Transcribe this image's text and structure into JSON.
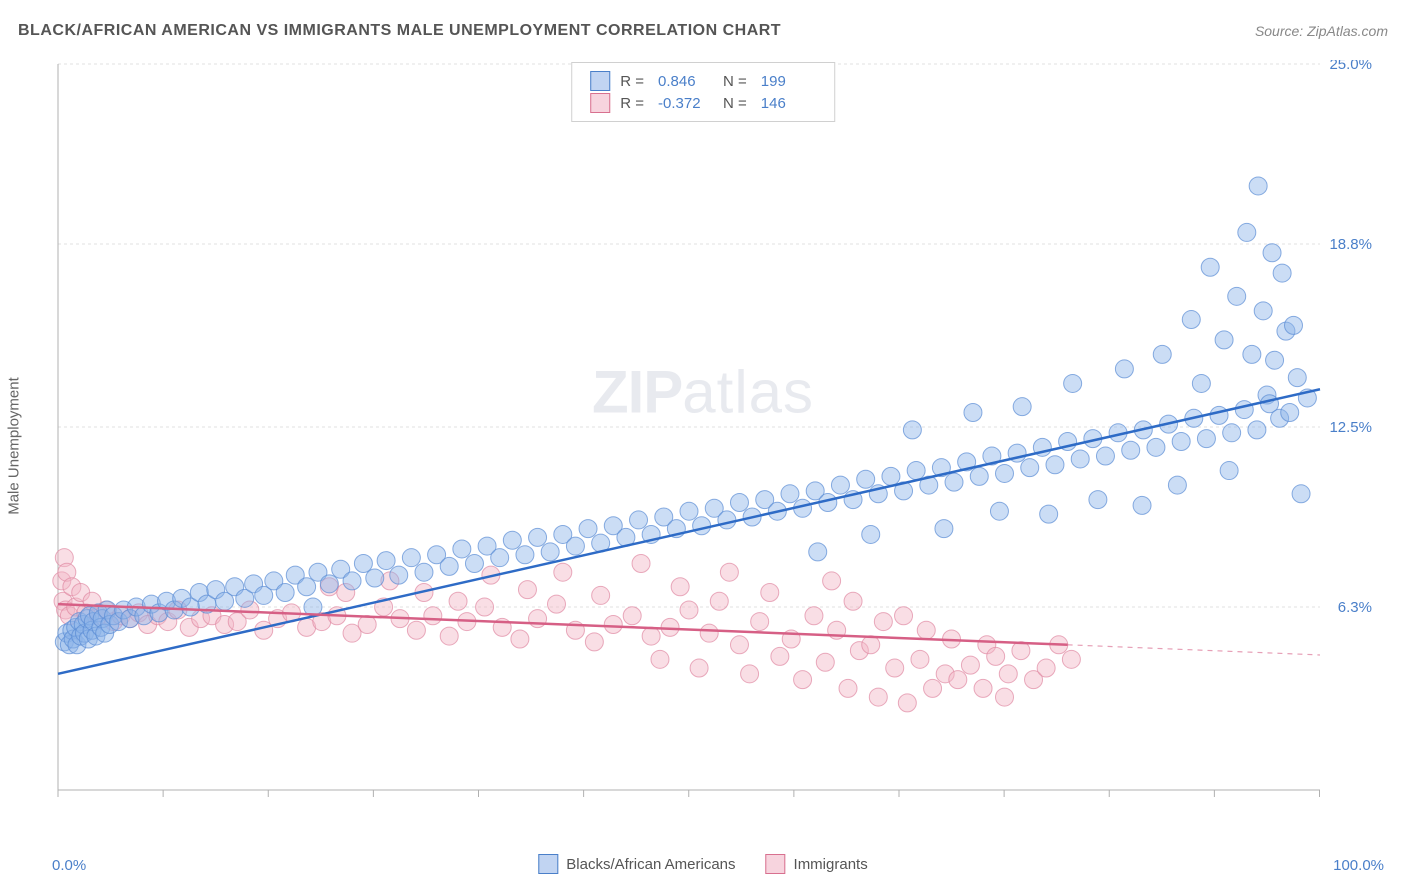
{
  "header": {
    "title": "BLACK/AFRICAN AMERICAN VS IMMIGRANTS MALE UNEMPLOYMENT CORRELATION CHART",
    "source_prefix": "Source: ",
    "source_name": "ZipAtlas.com"
  },
  "watermark": {
    "part1": "ZIP",
    "part2": "atlas"
  },
  "chart": {
    "type": "scatter",
    "ylabel": "Male Unemployment",
    "xlim": [
      0,
      100
    ],
    "ylim": [
      0,
      25
    ],
    "xtick_step": 8.33,
    "ytick_values": [
      6.3,
      12.5,
      18.8,
      25.0
    ],
    "ytick_labels": [
      "6.3%",
      "12.5%",
      "18.8%",
      "25.0%"
    ],
    "x_axis_left_label": "0.0%",
    "x_axis_right_label": "100.0%",
    "grid_color": "#e0e0e0",
    "axis_color": "#b0b0b0",
    "background_color": "#ffffff",
    "marker_radius": 9,
    "marker_opacity": 0.45,
    "line_width": 2.5,
    "series": {
      "blue": {
        "label": "Blacks/African Americans",
        "color_fill": "#8cb3e8",
        "color_stroke": "#5a8cd4",
        "line_color": "#2e6bc6",
        "R": "0.846",
        "N": "199",
        "regression": {
          "x1": 0,
          "y1": 4.0,
          "x2": 100,
          "y2": 13.8
        },
        "points": [
          [
            0.5,
            5.1
          ],
          [
            0.7,
            5.4
          ],
          [
            0.9,
            5.0
          ],
          [
            1.1,
            5.5
          ],
          [
            1.2,
            5.2
          ],
          [
            1.4,
            5.6
          ],
          [
            1.5,
            5.0
          ],
          [
            1.7,
            5.8
          ],
          [
            1.8,
            5.3
          ],
          [
            2.0,
            5.7
          ],
          [
            2.1,
            5.4
          ],
          [
            2.3,
            5.9
          ],
          [
            2.4,
            5.2
          ],
          [
            2.5,
            6.0
          ],
          [
            2.7,
            5.5
          ],
          [
            2.8,
            5.8
          ],
          [
            3.0,
            5.3
          ],
          [
            3.2,
            6.1
          ],
          [
            3.4,
            5.6
          ],
          [
            3.5,
            5.9
          ],
          [
            3.7,
            5.4
          ],
          [
            3.9,
            6.2
          ],
          [
            4.1,
            5.7
          ],
          [
            4.4,
            6.0
          ],
          [
            4.8,
            5.8
          ],
          [
            5.2,
            6.2
          ],
          [
            5.7,
            5.9
          ],
          [
            6.2,
            6.3
          ],
          [
            6.8,
            6.0
          ],
          [
            7.4,
            6.4
          ],
          [
            8.0,
            6.1
          ],
          [
            8.6,
            6.5
          ],
          [
            9.2,
            6.2
          ],
          [
            9.8,
            6.6
          ],
          [
            10.5,
            6.3
          ],
          [
            11.2,
            6.8
          ],
          [
            11.8,
            6.4
          ],
          [
            12.5,
            6.9
          ],
          [
            13.2,
            6.5
          ],
          [
            14.0,
            7.0
          ],
          [
            14.8,
            6.6
          ],
          [
            15.5,
            7.1
          ],
          [
            16.3,
            6.7
          ],
          [
            17.1,
            7.2
          ],
          [
            18.0,
            6.8
          ],
          [
            18.8,
            7.4
          ],
          [
            19.7,
            7.0
          ],
          [
            20.2,
            6.3
          ],
          [
            20.6,
            7.5
          ],
          [
            21.5,
            7.1
          ],
          [
            22.4,
            7.6
          ],
          [
            23.3,
            7.2
          ],
          [
            24.2,
            7.8
          ],
          [
            25.1,
            7.3
          ],
          [
            26.0,
            7.9
          ],
          [
            27.0,
            7.4
          ],
          [
            28.0,
            8.0
          ],
          [
            29.0,
            7.5
          ],
          [
            30.0,
            8.1
          ],
          [
            31.0,
            7.7
          ],
          [
            32.0,
            8.3
          ],
          [
            33.0,
            7.8
          ],
          [
            34.0,
            8.4
          ],
          [
            35.0,
            8.0
          ],
          [
            36.0,
            8.6
          ],
          [
            37.0,
            8.1
          ],
          [
            38.0,
            8.7
          ],
          [
            39.0,
            8.2
          ],
          [
            40.0,
            8.8
          ],
          [
            41.0,
            8.4
          ],
          [
            42.0,
            9.0
          ],
          [
            43.0,
            8.5
          ],
          [
            44.0,
            9.1
          ],
          [
            45.0,
            8.7
          ],
          [
            46.0,
            9.3
          ],
          [
            47.0,
            8.8
          ],
          [
            48.0,
            9.4
          ],
          [
            49.0,
            9.0
          ],
          [
            50.0,
            9.6
          ],
          [
            51.0,
            9.1
          ],
          [
            52.0,
            9.7
          ],
          [
            53.0,
            9.3
          ],
          [
            54.0,
            9.9
          ],
          [
            55.0,
            9.4
          ],
          [
            56.0,
            10.0
          ],
          [
            57.0,
            9.6
          ],
          [
            58.0,
            10.2
          ],
          [
            59.0,
            9.7
          ],
          [
            60.0,
            10.3
          ],
          [
            60.2,
            8.2
          ],
          [
            61.0,
            9.9
          ],
          [
            62.0,
            10.5
          ],
          [
            63.0,
            10.0
          ],
          [
            64.0,
            10.7
          ],
          [
            64.4,
            8.8
          ],
          [
            65.0,
            10.2
          ],
          [
            66.0,
            10.8
          ],
          [
            67.0,
            10.3
          ],
          [
            67.7,
            12.4
          ],
          [
            68.0,
            11.0
          ],
          [
            69.0,
            10.5
          ],
          [
            70.0,
            11.1
          ],
          [
            70.2,
            9.0
          ],
          [
            71.0,
            10.6
          ],
          [
            72.0,
            11.3
          ],
          [
            72.5,
            13.0
          ],
          [
            73.0,
            10.8
          ],
          [
            74.0,
            11.5
          ],
          [
            74.6,
            9.6
          ],
          [
            75.0,
            10.9
          ],
          [
            76.0,
            11.6
          ],
          [
            76.4,
            13.2
          ],
          [
            77.0,
            11.1
          ],
          [
            78.0,
            11.8
          ],
          [
            78.5,
            9.5
          ],
          [
            79.0,
            11.2
          ],
          [
            80.0,
            12.0
          ],
          [
            80.4,
            14.0
          ],
          [
            81.0,
            11.4
          ],
          [
            82.0,
            12.1
          ],
          [
            82.4,
            10.0
          ],
          [
            83.0,
            11.5
          ],
          [
            84.0,
            12.3
          ],
          [
            84.5,
            14.5
          ],
          [
            85.0,
            11.7
          ],
          [
            85.9,
            9.8
          ],
          [
            86.0,
            12.4
          ],
          [
            87.0,
            11.8
          ],
          [
            87.5,
            15.0
          ],
          [
            88.0,
            12.6
          ],
          [
            88.7,
            10.5
          ],
          [
            89.0,
            12.0
          ],
          [
            89.8,
            16.2
          ],
          [
            90.0,
            12.8
          ],
          [
            90.6,
            14.0
          ],
          [
            91.0,
            12.1
          ],
          [
            91.3,
            18.0
          ],
          [
            92.0,
            12.9
          ],
          [
            92.4,
            15.5
          ],
          [
            92.8,
            11.0
          ],
          [
            93.0,
            12.3
          ],
          [
            93.4,
            17.0
          ],
          [
            94.0,
            13.1
          ],
          [
            94.2,
            19.2
          ],
          [
            94.6,
            15.0
          ],
          [
            95.0,
            12.4
          ],
          [
            95.1,
            20.8
          ],
          [
            95.5,
            16.5
          ],
          [
            95.8,
            13.6
          ],
          [
            96.0,
            13.3
          ],
          [
            96.2,
            18.5
          ],
          [
            96.4,
            14.8
          ],
          [
            96.8,
            12.8
          ],
          [
            97.0,
            17.8
          ],
          [
            97.3,
            15.8
          ],
          [
            97.6,
            13.0
          ],
          [
            97.9,
            16.0
          ],
          [
            98.2,
            14.2
          ],
          [
            98.5,
            10.2
          ],
          [
            99.0,
            13.5
          ]
        ]
      },
      "pink": {
        "label": "Immigrants",
        "color_fill": "#f2b6c6",
        "color_stroke": "#e089a2",
        "line_color": "#d65f85",
        "R": "-0.372",
        "N": "146",
        "regression_solid": {
          "x1": 0,
          "y1": 6.4,
          "x2": 80,
          "y2": 5.0
        },
        "regression_dashed": {
          "x1": 80,
          "y1": 5.0,
          "x2": 100,
          "y2": 4.65
        },
        "points": [
          [
            0.3,
            7.2
          ],
          [
            0.4,
            6.5
          ],
          [
            0.5,
            8.0
          ],
          [
            0.6,
            6.2
          ],
          [
            0.7,
            7.5
          ],
          [
            0.9,
            6.0
          ],
          [
            1.1,
            7.0
          ],
          [
            1.4,
            6.3
          ],
          [
            1.8,
            6.8
          ],
          [
            2.2,
            6.1
          ],
          [
            2.7,
            6.5
          ],
          [
            3.2,
            6.0
          ],
          [
            3.8,
            6.2
          ],
          [
            4.4,
            5.8
          ],
          [
            5.0,
            6.0
          ],
          [
            5.7,
            5.9
          ],
          [
            6.4,
            6.1
          ],
          [
            7.1,
            5.7
          ],
          [
            7.9,
            6.0
          ],
          [
            8.7,
            5.8
          ],
          [
            9.5,
            6.2
          ],
          [
            10.4,
            5.6
          ],
          [
            11.3,
            5.9
          ],
          [
            12.2,
            6.0
          ],
          [
            13.2,
            5.7
          ],
          [
            14.2,
            5.8
          ],
          [
            15.2,
            6.2
          ],
          [
            16.3,
            5.5
          ],
          [
            17.4,
            5.9
          ],
          [
            18.5,
            6.1
          ],
          [
            19.7,
            5.6
          ],
          [
            20.9,
            5.8
          ],
          [
            21.5,
            7.0
          ],
          [
            22.1,
            6.0
          ],
          [
            22.8,
            6.8
          ],
          [
            23.3,
            5.4
          ],
          [
            24.5,
            5.7
          ],
          [
            25.8,
            6.3
          ],
          [
            26.3,
            7.2
          ],
          [
            27.1,
            5.9
          ],
          [
            28.4,
            5.5
          ],
          [
            29.0,
            6.8
          ],
          [
            29.7,
            6.0
          ],
          [
            31.0,
            5.3
          ],
          [
            31.7,
            6.5
          ],
          [
            32.4,
            5.8
          ],
          [
            33.8,
            6.3
          ],
          [
            34.3,
            7.4
          ],
          [
            35.2,
            5.6
          ],
          [
            36.6,
            5.2
          ],
          [
            37.2,
            6.9
          ],
          [
            38.0,
            5.9
          ],
          [
            39.5,
            6.4
          ],
          [
            40.0,
            7.5
          ],
          [
            41.0,
            5.5
          ],
          [
            42.5,
            5.1
          ],
          [
            43.0,
            6.7
          ],
          [
            44.0,
            5.7
          ],
          [
            45.5,
            6.0
          ],
          [
            46.2,
            7.8
          ],
          [
            47.0,
            5.3
          ],
          [
            47.7,
            4.5
          ],
          [
            48.5,
            5.6
          ],
          [
            49.3,
            7.0
          ],
          [
            50.0,
            6.2
          ],
          [
            50.8,
            4.2
          ],
          [
            51.6,
            5.4
          ],
          [
            52.4,
            6.5
          ],
          [
            53.2,
            7.5
          ],
          [
            54.0,
            5.0
          ],
          [
            54.8,
            4.0
          ],
          [
            55.6,
            5.8
          ],
          [
            56.4,
            6.8
          ],
          [
            57.2,
            4.6
          ],
          [
            58.1,
            5.2
          ],
          [
            59.0,
            3.8
          ],
          [
            59.9,
            6.0
          ],
          [
            60.8,
            4.4
          ],
          [
            61.3,
            7.2
          ],
          [
            61.7,
            5.5
          ],
          [
            62.6,
            3.5
          ],
          [
            63.0,
            6.5
          ],
          [
            63.5,
            4.8
          ],
          [
            64.4,
            5.0
          ],
          [
            65.0,
            3.2
          ],
          [
            65.4,
            5.8
          ],
          [
            66.3,
            4.2
          ],
          [
            67.0,
            6.0
          ],
          [
            67.3,
            3.0
          ],
          [
            68.3,
            4.5
          ],
          [
            68.8,
            5.5
          ],
          [
            69.3,
            3.5
          ],
          [
            70.3,
            4.0
          ],
          [
            70.8,
            5.2
          ],
          [
            71.3,
            3.8
          ],
          [
            72.3,
            4.3
          ],
          [
            73.3,
            3.5
          ],
          [
            73.6,
            5.0
          ],
          [
            74.3,
            4.6
          ],
          [
            75.0,
            3.2
          ],
          [
            75.3,
            4.0
          ],
          [
            76.3,
            4.8
          ],
          [
            77.3,
            3.8
          ],
          [
            78.3,
            4.2
          ],
          [
            79.3,
            5.0
          ],
          [
            80.3,
            4.5
          ]
        ]
      }
    }
  },
  "legend_box": {
    "r_label": "R  =",
    "n_label": "N  ="
  }
}
